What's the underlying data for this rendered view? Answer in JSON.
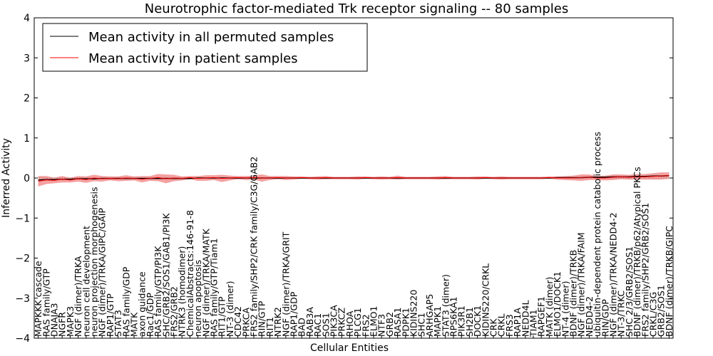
{
  "chart_data": {
    "type": "line",
    "title": "Neurotrophic factor-mediated Trk receptor signaling -- 80 samples",
    "xlabel": "Cellular Entities",
    "ylabel": "Inferred Activity",
    "ylim": [
      -4,
      4
    ],
    "yticks": [
      "4",
      "3",
      "2",
      "1",
      "0",
      "−1",
      "−2",
      "−3",
      "−4"
    ],
    "legend_position": "top-left",
    "categories": [
      "MAPKKK cascade",
      "RAS family/GTP",
      "DNAJA3",
      "NGFR",
      "MAPK3",
      "NGF (dimer)/TRKA",
      "neuron cell development",
      "neuron projection morphogenesis",
      "NGF (dimer)/TRKA/GIPC/GAIP",
      "RAP1/GTP",
      "STAT3",
      "RAS family/GDP",
      "MATK",
      "axon guidance",
      "Rac1/GDP",
      "RAS family/GTP/PI3K",
      "SHC/GRB2/SOS1/GAB1/PI3K",
      "FRS2/GRB2",
      "NTRK3 (homodimer)",
      "ChemicalAbstracts:146-91-8",
      "neuron apoptosis",
      "NGF (dimer)/TRKA/MATK",
      "RAS family/GTP/Tiam1",
      "RIT1/GTP",
      "NT-3 (dimer)",
      "CDC42",
      "PRKCA",
      "FRS2 family/SHP2/CRK family/C3G/GAB2",
      "RIN/GTP",
      "RIT1",
      "NTRK2",
      "NGF (dimer)/TRKA/GRIT",
      "RAP1/GDP",
      "BAD",
      "RAB3A",
      "RAC1",
      "SOS1",
      "PIK3CA",
      "PRKCZ",
      "RHOA",
      "PLCG1",
      "FRS2",
      "ELMO1",
      "NTF3",
      "GRB2",
      "RASA1",
      "PDPK1",
      "KIDINS220",
      "SHC1",
      "ARHGAP5",
      "MAPK1",
      "STAT3 (dimer)",
      "RPS6KA1",
      "PIK3R1",
      "SH2B1",
      "DOCK1",
      "KIDINS220/CRKL",
      "CRK",
      "CRKL",
      "FRS3",
      "RAP1A",
      "NEDD4L",
      "TIAM1",
      "RAPGEF1",
      "MATK (dimer)",
      "ELMO1/DOCK1",
      "NT-4 (dimer)",
      "BDNF (dimer)/TRKB",
      "NGF (dimer)/TRKA/FAIM",
      "NEDD4-2",
      "ubiquitin-dependent protein catabolic process",
      "RIN/GDP",
      "NGF (dimer)/TRKA/NEDD4-2",
      "NT-3/TRKC",
      "SHC 2/3/GRB2/SOS1",
      "BDNF (dimer)/TRKB/p62/Atypical PKCs",
      "FRS2 family/SHP2/GRB2/SOS1",
      "CRKL/C3G",
      "GRB2/SOS1",
      "BDNF (dimer)/TRKB/GIPC"
    ],
    "series": [
      {
        "name": "Mean activity in all permuted samples",
        "color": "#000000",
        "values": [
          -0.05,
          -0.04,
          -0.04,
          -0.03,
          -0.03,
          -0.02,
          -0.02,
          -0.02,
          -0.01,
          -0.01,
          -0.01,
          -0.01,
          -0.01,
          -0.01,
          -0.01,
          -0.01,
          -0.01,
          -0.01,
          -0.01,
          -0.01,
          0.0,
          0.0,
          0.0,
          0.0,
          0.0,
          0.0,
          0.0,
          0.0,
          0.0,
          0.0,
          0.0,
          0.0,
          0.0,
          0.0,
          0.0,
          0.0,
          0.0,
          0.0,
          0.0,
          0.0,
          0.0,
          0.0,
          0.0,
          0.0,
          0.0,
          0.0,
          0.0,
          0.0,
          0.0,
          0.0,
          0.0,
          0.0,
          0.0,
          0.0,
          0.0,
          0.0,
          0.0,
          0.0,
          0.0,
          0.0,
          0.0,
          0.0,
          0.0,
          0.0,
          0.0,
          0.01,
          0.01,
          0.01,
          0.01,
          0.02,
          0.02,
          0.02,
          0.03,
          0.03,
          0.03,
          0.04,
          0.04,
          0.05,
          0.05,
          0.06
        ]
      },
      {
        "name": "Mean activity in patient samples",
        "color": "#ff0000",
        "values": [
          -0.08,
          -0.05,
          -0.06,
          -0.03,
          -0.05,
          -0.02,
          -0.04,
          0.0,
          -0.02,
          -0.01,
          -0.02,
          0.0,
          -0.01,
          -0.03,
          -0.01,
          0.01,
          -0.02,
          0.0,
          -0.01,
          0.01,
          -0.01,
          0.0,
          0.01,
          -0.01,
          0.0,
          0.01,
          0.0,
          0.01,
          0.0,
          0.0,
          0.01,
          0.0,
          0.0,
          0.01,
          0.0,
          0.0,
          0.01,
          0.0,
          0.0,
          0.0,
          0.0,
          0.01,
          0.0,
          0.0,
          0.0,
          0.01,
          0.0,
          0.0,
          0.0,
          0.0,
          0.0,
          0.01,
          0.0,
          0.0,
          0.0,
          0.0,
          0.01,
          0.0,
          0.0,
          0.0,
          0.0,
          0.0,
          0.0,
          0.0,
          0.01,
          0.0,
          0.0,
          0.0,
          0.01,
          0.02,
          0.0,
          0.0,
          0.02,
          0.03,
          0.02,
          0.03,
          0.03,
          0.04,
          0.05,
          0.06
        ],
        "band": [
          0.13,
          0.1,
          0.07,
          0.08,
          0.06,
          0.07,
          0.08,
          0.08,
          0.07,
          0.05,
          0.06,
          0.07,
          0.05,
          0.08,
          0.06,
          0.09,
          0.11,
          0.08,
          0.05,
          0.04,
          0.06,
          0.07,
          0.06,
          0.09,
          0.06,
          0.04,
          0.05,
          0.05,
          0.09,
          0.05,
          0.04,
          0.05,
          0.04,
          0.03,
          0.03,
          0.04,
          0.04,
          0.03,
          0.03,
          0.03,
          0.04,
          0.03,
          0.03,
          0.04,
          0.03,
          0.05,
          0.03,
          0.03,
          0.03,
          0.03,
          0.04,
          0.04,
          0.03,
          0.03,
          0.03,
          0.04,
          0.03,
          0.03,
          0.04,
          0.03,
          0.03,
          0.03,
          0.03,
          0.03,
          0.03,
          0.04,
          0.05,
          0.06,
          0.08,
          0.07,
          0.05,
          0.06,
          0.07,
          0.06,
          0.06,
          0.07,
          0.07,
          0.08,
          0.09,
          0.08
        ],
        "band_color": "#f08080"
      }
    ],
    "zero_line": "dotted"
  }
}
